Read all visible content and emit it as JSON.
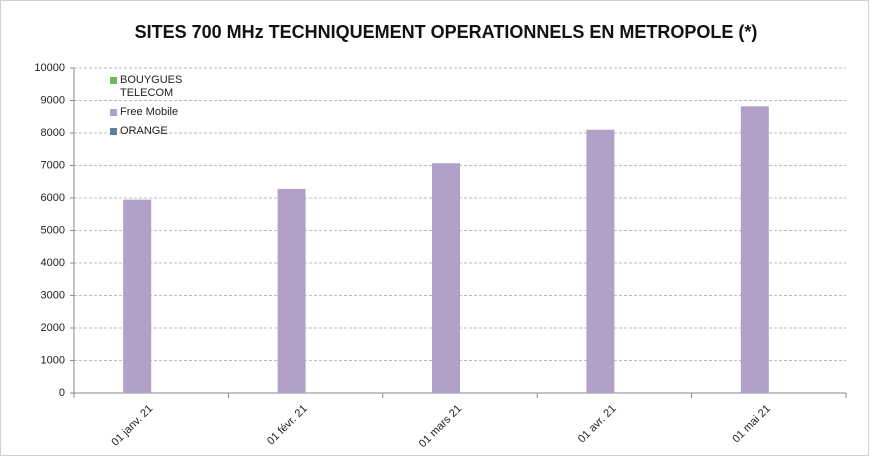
{
  "chart_data": {
    "type": "bar",
    "title": "SITES 700 MHz TECHNIQUEMENT OPERATIONNELS EN METROPOLE (*)",
    "categories": [
      "01 janv. 21",
      "01 févr. 21",
      "01 mars 21",
      "01 avr. 21",
      "01 mai 21"
    ],
    "series": [
      {
        "name": "BOUYGUES TELECOM",
        "color": "#77b365",
        "values": [
          null,
          null,
          null,
          null,
          null
        ]
      },
      {
        "name": "Free Mobile",
        "color": "#b1a0c7",
        "values": [
          5950,
          6280,
          7070,
          8100,
          8820
        ]
      },
      {
        "name": "ORANGE",
        "color": "#5f7f9a",
        "values": [
          null,
          null,
          null,
          null,
          null
        ]
      }
    ],
    "ylim": [
      0,
      10000
    ],
    "yticks": [
      0,
      1000,
      2000,
      3000,
      4000,
      5000,
      6000,
      7000,
      8000,
      9000,
      10000
    ],
    "grid": true
  }
}
